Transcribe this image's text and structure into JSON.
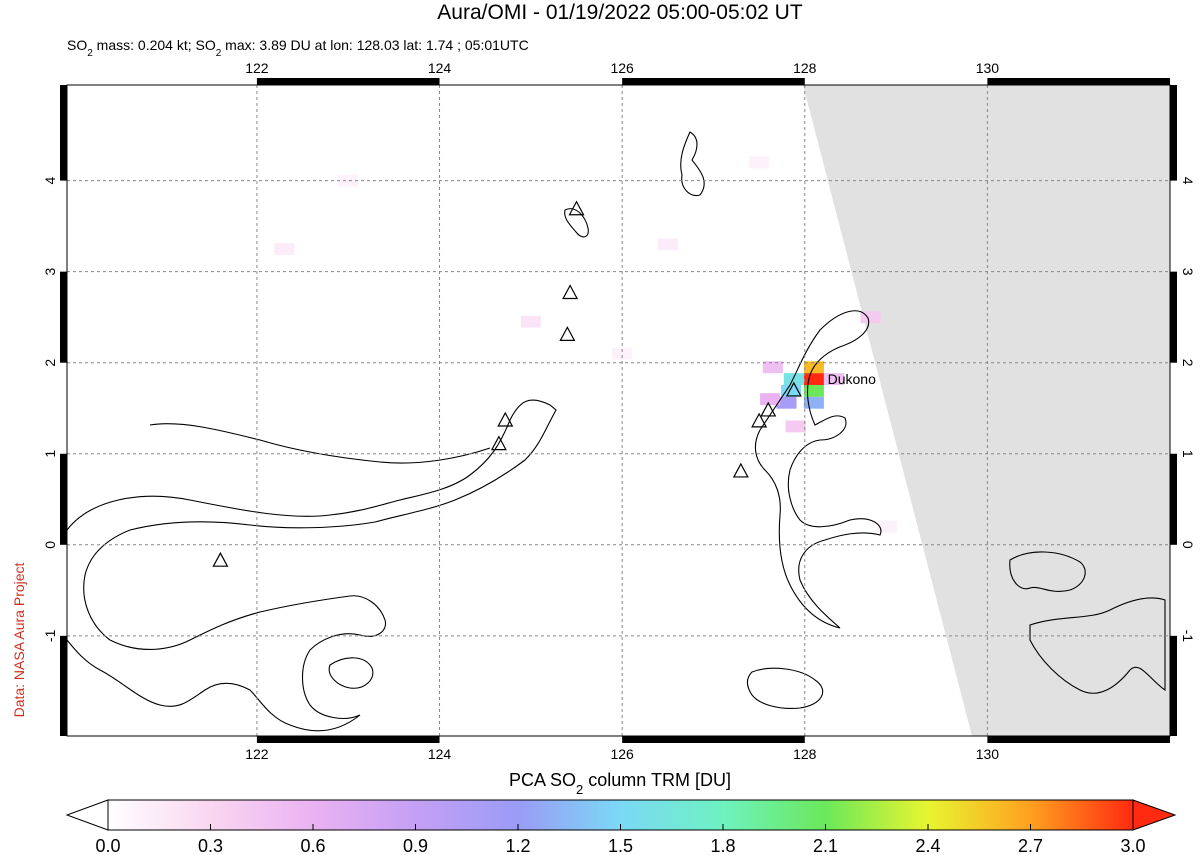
{
  "title": "Aura/OMI - 01/19/2022 05:00-05:02 UT",
  "subtitle_parts": [
    "SO",
    "2",
    " mass: 0.204 kt; SO",
    "2",
    " max: 3.89 DU at lon: 128.03 lat: 1.74 ; 05:01UTC"
  ],
  "credit": "Data: NASA Aura Project",
  "map": {
    "xlim": [
      119.92,
      132.0
    ],
    "ylim": [
      -2.1,
      5.05
    ],
    "xticks": [
      122,
      124,
      126,
      128,
      130
    ],
    "yticks": [
      -1,
      0,
      1,
      2,
      3,
      4
    ],
    "grid": true,
    "volcano_label": "Dukono",
    "volcano_label_lon": 128.25,
    "volcano_label_lat": 1.82,
    "volcanoes": [
      {
        "lon": 127.88,
        "lat": 1.69
      },
      {
        "lon": 127.6,
        "lat": 1.47
      },
      {
        "lon": 127.5,
        "lat": 1.35
      },
      {
        "lon": 127.3,
        "lat": 0.8
      },
      {
        "lon": 124.72,
        "lat": 1.36
      },
      {
        "lon": 124.65,
        "lat": 1.1
      },
      {
        "lon": 125.4,
        "lat": 2.3
      },
      {
        "lon": 125.43,
        "lat": 2.76
      },
      {
        "lon": 125.5,
        "lat": 3.68
      },
      {
        "lon": 121.6,
        "lat": -0.18
      }
    ],
    "cells": [
      {
        "lon": 128.1,
        "lat": 1.95,
        "value": 2.6
      },
      {
        "lon": 128.1,
        "lat": 1.82,
        "value": 3.0
      },
      {
        "lon": 128.1,
        "lat": 1.69,
        "value": 2.1
      },
      {
        "lon": 128.1,
        "lat": 1.56,
        "value": 1.3
      },
      {
        "lon": 127.88,
        "lat": 1.82,
        "value": 1.6
      },
      {
        "lon": 127.85,
        "lat": 1.69,
        "value": 1.5
      },
      {
        "lon": 127.8,
        "lat": 1.56,
        "value": 1.1
      },
      {
        "lon": 127.65,
        "lat": 1.95,
        "value": 0.5
      },
      {
        "lon": 127.62,
        "lat": 1.6,
        "value": 0.6
      },
      {
        "lon": 128.32,
        "lat": 1.82,
        "value": 0.5
      },
      {
        "lon": 127.9,
        "lat": 1.3,
        "value": 0.4
      },
      {
        "lon": 128.72,
        "lat": 2.5,
        "value": 0.4
      },
      {
        "lon": 125.0,
        "lat": 2.45,
        "value": 0.2
      },
      {
        "lon": 122.3,
        "lat": 3.25,
        "value": 0.15
      },
      {
        "lon": 126.5,
        "lat": 3.3,
        "value": 0.15
      },
      {
        "lon": 127.5,
        "lat": 4.2,
        "value": 0.1
      },
      {
        "lon": 123.0,
        "lat": 4.0,
        "value": 0.1
      },
      {
        "lon": 126.0,
        "lat": 2.1,
        "value": 0.1
      },
      {
        "lon": 128.9,
        "lat": 0.2,
        "value": 0.1
      }
    ],
    "nodata_color": "#e1e1e1"
  },
  "colorbar": {
    "label_parts": [
      "PCA SO",
      "2",
      " column TRM [DU]"
    ],
    "lim": [
      0,
      3
    ],
    "ticks": [
      {
        "value": 0,
        "label": "0.0"
      },
      0.3,
      0.6,
      0.9,
      1.2,
      1.5,
      1.8,
      2.1,
      2.4,
      2.7,
      {
        "value": 3,
        "label": "3.0"
      }
    ],
    "colormap": [
      "#ffffff",
      "#f9d6f1",
      "#eab2f2",
      "#c4a0f5",
      "#9a9cf6",
      "#7bd8f6",
      "#6ef2c0",
      "#6be85a",
      "#e8f530",
      "#ffa020",
      "#ff2a10"
    ]
  }
}
